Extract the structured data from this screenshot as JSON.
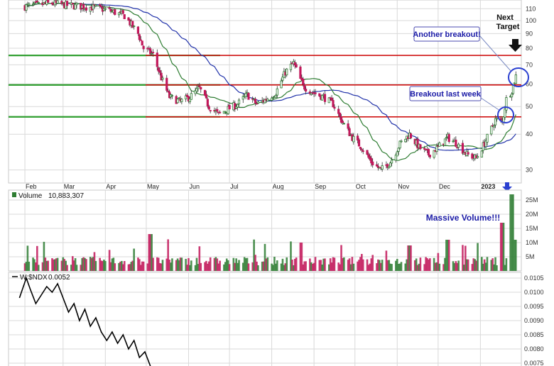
{
  "chart_data": [
    {
      "type": "candlestick",
      "title": "",
      "x_tick_labels": [
        "Feb",
        "Mar",
        "Apr",
        "May",
        "Jun",
        "Jul",
        "Aug",
        "Sep",
        "Oct",
        "Nov",
        "Dec",
        "2023"
      ],
      "y_scale": "log",
      "ylim": [
        27,
        118
      ],
      "y_tick_labels": [
        "110",
        "100",
        "90",
        "80",
        "70",
        "60",
        "50",
        "40",
        "30"
      ],
      "y_tick_values": [
        110,
        100,
        90,
        80,
        70,
        60,
        50,
        40,
        30
      ],
      "grid": true,
      "horizontal_levels": [
        {
          "value": 75.5,
          "color": "#cc0000"
        },
        {
          "value": 59.5,
          "color": "#cc0000"
        },
        {
          "value": 46.0,
          "color": "#cc0000"
        }
      ],
      "ma_fast_color": "#2e7d32",
      "ma_slow_color": "#2233aa",
      "up_color": "#2e7d32",
      "down_color": "#c2185b",
      "price_path": [
        {
          "date": "2022-02-01",
          "close": 112
        },
        {
          "date": "2022-02-20",
          "close": 115
        },
        {
          "date": "2022-03-05",
          "close": 113
        },
        {
          "date": "2022-03-25",
          "close": 111
        },
        {
          "date": "2022-04-05",
          "close": 108
        },
        {
          "date": "2022-04-15",
          "close": 104
        },
        {
          "date": "2022-04-25",
          "close": 90
        },
        {
          "date": "2022-04-29",
          "close": 80
        },
        {
          "date": "2022-05-06",
          "close": 76
        },
        {
          "date": "2022-05-12",
          "close": 63
        },
        {
          "date": "2022-05-18",
          "close": 54
        },
        {
          "date": "2022-05-26",
          "close": 52
        },
        {
          "date": "2022-06-02",
          "close": 54
        },
        {
          "date": "2022-06-09",
          "close": 58
        },
        {
          "date": "2022-06-16",
          "close": 50
        },
        {
          "date": "2022-06-23",
          "close": 47
        },
        {
          "date": "2022-06-30",
          "close": 49
        },
        {
          "date": "2022-07-07",
          "close": 51
        },
        {
          "date": "2022-07-14",
          "close": 55
        },
        {
          "date": "2022-07-21",
          "close": 51
        },
        {
          "date": "2022-07-28",
          "close": 53
        },
        {
          "date": "2022-08-04",
          "close": 56
        },
        {
          "date": "2022-08-11",
          "close": 66
        },
        {
          "date": "2022-08-17",
          "close": 71
        },
        {
          "date": "2022-08-24",
          "close": 59
        },
        {
          "date": "2022-08-31",
          "close": 56
        },
        {
          "date": "2022-09-08",
          "close": 54
        },
        {
          "date": "2022-09-15",
          "close": 51
        },
        {
          "date": "2022-09-22",
          "close": 44
        },
        {
          "date": "2022-09-29",
          "close": 39
        },
        {
          "date": "2022-10-06",
          "close": 36
        },
        {
          "date": "2022-10-13",
          "close": 32
        },
        {
          "date": "2022-10-20",
          "close": 30
        },
        {
          "date": "2022-10-27",
          "close": 32
        },
        {
          "date": "2022-11-03",
          "close": 37
        },
        {
          "date": "2022-11-10",
          "close": 40
        },
        {
          "date": "2022-11-17",
          "close": 36
        },
        {
          "date": "2022-11-24",
          "close": 34
        },
        {
          "date": "2022-12-01",
          "close": 36
        },
        {
          "date": "2022-12-08",
          "close": 39
        },
        {
          "date": "2022-12-15",
          "close": 37
        },
        {
          "date": "2022-12-22",
          "close": 34
        },
        {
          "date": "2022-12-29",
          "close": 33
        },
        {
          "date": "2023-01-05",
          "close": 38
        },
        {
          "date": "2023-01-12",
          "close": 45
        },
        {
          "date": "2023-01-17",
          "close": 44
        },
        {
          "date": "2023-01-20",
          "close": 53
        },
        {
          "date": "2023-01-24",
          "close": 57
        },
        {
          "date": "2023-01-27",
          "close": 64
        }
      ],
      "annotations": [
        {
          "text": "Next",
          "color": "#111111"
        },
        {
          "text": "Target",
          "color": "#111111"
        },
        {
          "text": "Another breakout!",
          "color": "#1a1aa6"
        },
        {
          "text": "Breakout last week",
          "color": "#1a1aa6"
        }
      ]
    },
    {
      "type": "bar",
      "label": "Volume",
      "value_text": "10,883,307",
      "y_unit": "M",
      "ylim": [
        0,
        28
      ],
      "y_tick_labels": [
        "25M",
        "20M",
        "15M",
        "10M",
        "5M"
      ],
      "y_tick_values": [
        25,
        20,
        15,
        10,
        5
      ],
      "annotation": "Massive Volume!!!",
      "annotation_color": "#1a1aa6",
      "typical_volume_m": [
        2,
        5
      ],
      "spikes": [
        {
          "date": "2022-05-04",
          "volume_m": 13
        },
        {
          "date": "2022-08-22",
          "volume_m": 10
        },
        {
          "date": "2022-11-10",
          "volume_m": 9
        },
        {
          "date": "2022-12-08",
          "volume_m": 11
        },
        {
          "date": "2023-01-17",
          "volume_m": 17
        },
        {
          "date": "2023-01-24",
          "volume_m": 27
        },
        {
          "date": "2023-01-27",
          "volume_m": 11
        }
      ]
    },
    {
      "type": "line",
      "label": "W:$NDX",
      "value_text": "0.0052",
      "ylim": [
        0.0074,
        0.0107
      ],
      "y_tick_labels": [
        "0.0105",
        "0.0100",
        "0.0095",
        "0.0090",
        "0.0085",
        "0.0080",
        "0.0075"
      ],
      "y_tick_values": [
        0.0105,
        0.01,
        0.0095,
        0.009,
        0.0085,
        0.008,
        0.0075
      ],
      "line_color": "#000000",
      "values": [
        {
          "date": "2022-01-28",
          "value": 0.0098
        },
        {
          "date": "2022-02-02",
          "value": 0.0105
        },
        {
          "date": "2022-02-05",
          "value": 0.0101
        },
        {
          "date": "2022-02-09",
          "value": 0.0096
        },
        {
          "date": "2022-02-13",
          "value": 0.0099
        },
        {
          "date": "2022-02-17",
          "value": 0.0102
        },
        {
          "date": "2022-02-21",
          "value": 0.01
        },
        {
          "date": "2022-02-25",
          "value": 0.0103
        },
        {
          "date": "2022-03-01",
          "value": 0.0098
        },
        {
          "date": "2022-03-05",
          "value": 0.0093
        },
        {
          "date": "2022-03-09",
          "value": 0.0096
        },
        {
          "date": "2022-03-13",
          "value": 0.009
        },
        {
          "date": "2022-03-17",
          "value": 0.0094
        },
        {
          "date": "2022-03-21",
          "value": 0.0088
        },
        {
          "date": "2022-03-25",
          "value": 0.0091
        },
        {
          "date": "2022-03-29",
          "value": 0.0086
        },
        {
          "date": "2022-04-02",
          "value": 0.0083
        },
        {
          "date": "2022-04-06",
          "value": 0.0086
        },
        {
          "date": "2022-04-10",
          "value": 0.0082
        },
        {
          "date": "2022-04-14",
          "value": 0.0085
        },
        {
          "date": "2022-04-18",
          "value": 0.008
        },
        {
          "date": "2022-04-22",
          "value": 0.0083
        },
        {
          "date": "2022-04-26",
          "value": 0.0077
        },
        {
          "date": "2022-04-30",
          "value": 0.0079
        },
        {
          "date": "2022-05-04",
          "value": 0.0074
        }
      ]
    }
  ],
  "colors": {
    "background": "#ffffff",
    "grid": "#d9d9d9",
    "axis_text": "#333333",
    "support_line": "#2e9e2e"
  },
  "support_levels": [
    75.5,
    59.5,
    46.0
  ],
  "ui": {
    "volume_label": "Volume",
    "volume_value": "10,883,307",
    "ndx_label": "W:$NDX",
    "ndx_value": "0.0052",
    "next_label": "Next",
    "target_label": "Target",
    "another_breakout": "Another breakout!",
    "breakout_last_week": "Breakout last week",
    "massive_volume": "Massive Volume!!!",
    "arrow_icon": "arrow-down-icon"
  }
}
